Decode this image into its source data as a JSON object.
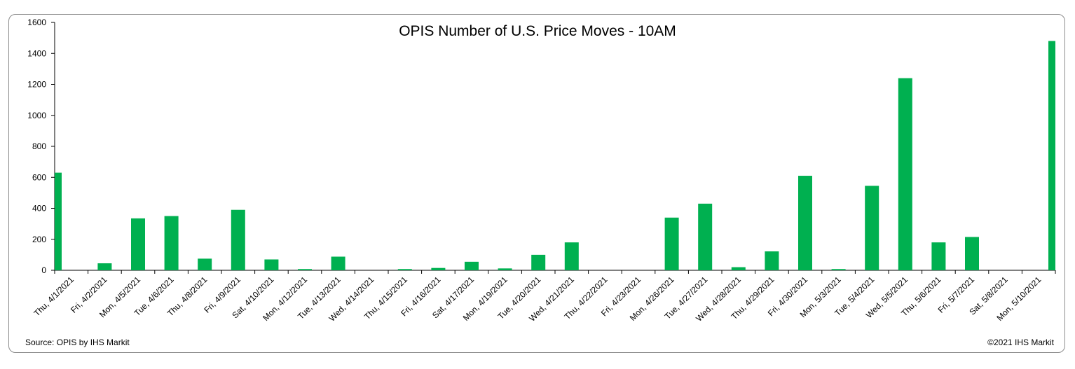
{
  "chart_data": {
    "type": "bar",
    "title": "OPIS Number of U.S. Price Moves - 10AM",
    "xlabel": "",
    "ylabel": "",
    "ylim": [
      0,
      1600
    ],
    "yticks": [
      0,
      200,
      400,
      600,
      800,
      1000,
      1200,
      1400,
      1600
    ],
    "grid": false,
    "bar_color": "#00b050",
    "categories": [
      "Thu, 4/1/2021",
      "Fri, 4/2/2021",
      "Mon, 4/5/2021",
      "Tue, 4/6/2021",
      "Thu, 4/8/2021",
      "Fri, 4/9/2021",
      "Sat, 4/10/2021",
      "Mon, 4/12/2021",
      "Tue, 4/13/2021",
      "Wed, 4/14/2021",
      "Thu, 4/15/2021",
      "Fri, 4/16/2021",
      "Sat, 4/17/2021",
      "Mon, 4/19/2021",
      "Tue, 4/20/2021",
      "Wed, 4/21/2021",
      "Thu, 4/22/2021",
      "Fri, 4/23/2021",
      "Mon, 4/26/2021",
      "Tue, 4/27/2021",
      "Wed, 4/28/2021",
      "Thu, 4/29/2021",
      "Fri, 4/30/2021",
      "Mon, 5/3/2021",
      "Tue, 5/4/2021",
      "Wed, 5/5/2021",
      "Thu, 5/6/2021",
      "Fri, 5/7/2021",
      "Sat, 5/8/2021",
      "Mon, 5/10/2021"
    ],
    "values": [
      630,
      45,
      335,
      350,
      75,
      390,
      70,
      8,
      88,
      0,
      8,
      15,
      55,
      12,
      100,
      180,
      0,
      0,
      340,
      430,
      20,
      122,
      610,
      8,
      545,
      1240,
      180,
      215,
      0,
      1480
    ]
  },
  "footer": {
    "source": "Source: OPIS by IHS Markit",
    "copyright": "©2021 IHS Markit"
  }
}
